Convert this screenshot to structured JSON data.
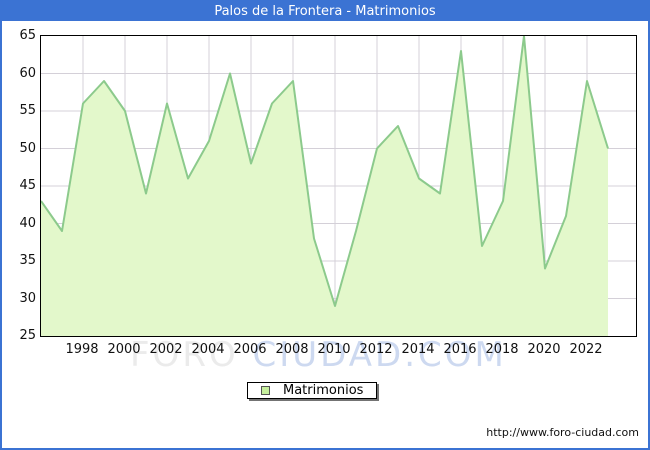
{
  "window": {
    "title": "Palos de la Frontera - Matrimonios"
  },
  "watermark": {
    "part1": "FORO ",
    "part2": "CIUDAD.COM"
  },
  "legend": {
    "label": "Matrimonios"
  },
  "footer": {
    "url": "http://www.foro-ciudad.com"
  },
  "colors": {
    "frame_blue": "#3b73d3",
    "title_text": "#ffffff",
    "area_fill": "#e3f8cb",
    "area_line": "#8cca8c",
    "grid": "#d4d0d8",
    "plot_border": "#000000",
    "legend_swatch": "#c6ef9d",
    "watermark_gray": "#ebebeb",
    "watermark_blue": "#cdd9f0"
  },
  "chart_data": {
    "type": "area",
    "title": "Palos de la Frontera - Matrimonios",
    "series_name": "Matrimonios",
    "x": [
      1996,
      1997,
      1998,
      1999,
      2000,
      2001,
      2002,
      2003,
      2004,
      2005,
      2006,
      2007,
      2008,
      2009,
      2010,
      2011,
      2012,
      2013,
      2014,
      2015,
      2016,
      2017,
      2018,
      2019,
      2020,
      2021,
      2022,
      2023
    ],
    "values": [
      43,
      39,
      56,
      59,
      55,
      44,
      56,
      46,
      51,
      60,
      48,
      56,
      59,
      38,
      29,
      39,
      50,
      53,
      46,
      44,
      63,
      37,
      43,
      65,
      34,
      41,
      59,
      50
    ],
    "ylim": [
      25,
      65
    ],
    "ytick_step": 5,
    "yticks": [
      25,
      30,
      35,
      40,
      45,
      50,
      55,
      60,
      65
    ],
    "xticks": [
      1998,
      2000,
      2002,
      2004,
      2006,
      2008,
      2010,
      2012,
      2014,
      2016,
      2018,
      2020,
      2022
    ],
    "grid": true,
    "legend_position": "bottom-center"
  }
}
